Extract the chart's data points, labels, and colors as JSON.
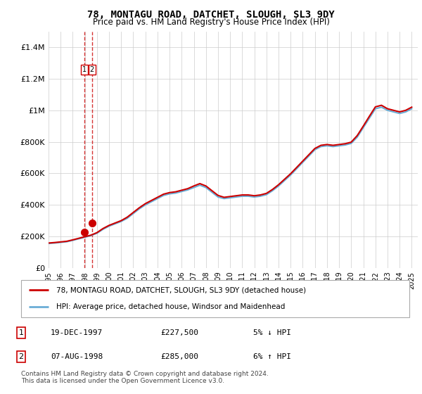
{
  "title": "78, MONTAGU ROAD, DATCHET, SLOUGH, SL3 9DY",
  "subtitle": "Price paid vs. HM Land Registry's House Price Index (HPI)",
  "legend_line1": "78, MONTAGU ROAD, DATCHET, SLOUGH, SL3 9DY (detached house)",
  "legend_line2": "HPI: Average price, detached house, Windsor and Maidenhead",
  "footer": "Contains HM Land Registry data © Crown copyright and database right 2024.\nThis data is licensed under the Open Government Licence v3.0.",
  "table": [
    {
      "num": "1",
      "date": "19-DEC-1997",
      "price": "£227,500",
      "hpi": "5% ↓ HPI"
    },
    {
      "num": "2",
      "date": "07-AUG-1998",
      "price": "£285,000",
      "hpi": "6% ↑ HPI"
    }
  ],
  "sale_dates": [
    "1997-12-19",
    "1998-08-07"
  ],
  "sale_prices": [
    227500,
    285000
  ],
  "hpi_color": "#6baed6",
  "price_color": "#cc0000",
  "dashed_color": "#cc0000",
  "ylim": [
    0,
    1500000
  ],
  "yticks": [
    0,
    200000,
    400000,
    600000,
    800000,
    1000000,
    1200000,
    1400000
  ],
  "ytick_labels": [
    "£0",
    "£200K",
    "£400K",
    "£600K",
    "£800K",
    "£1M",
    "£1.2M",
    "£1.4M"
  ],
  "background_color": "#ffffff",
  "grid_color": "#cccccc"
}
